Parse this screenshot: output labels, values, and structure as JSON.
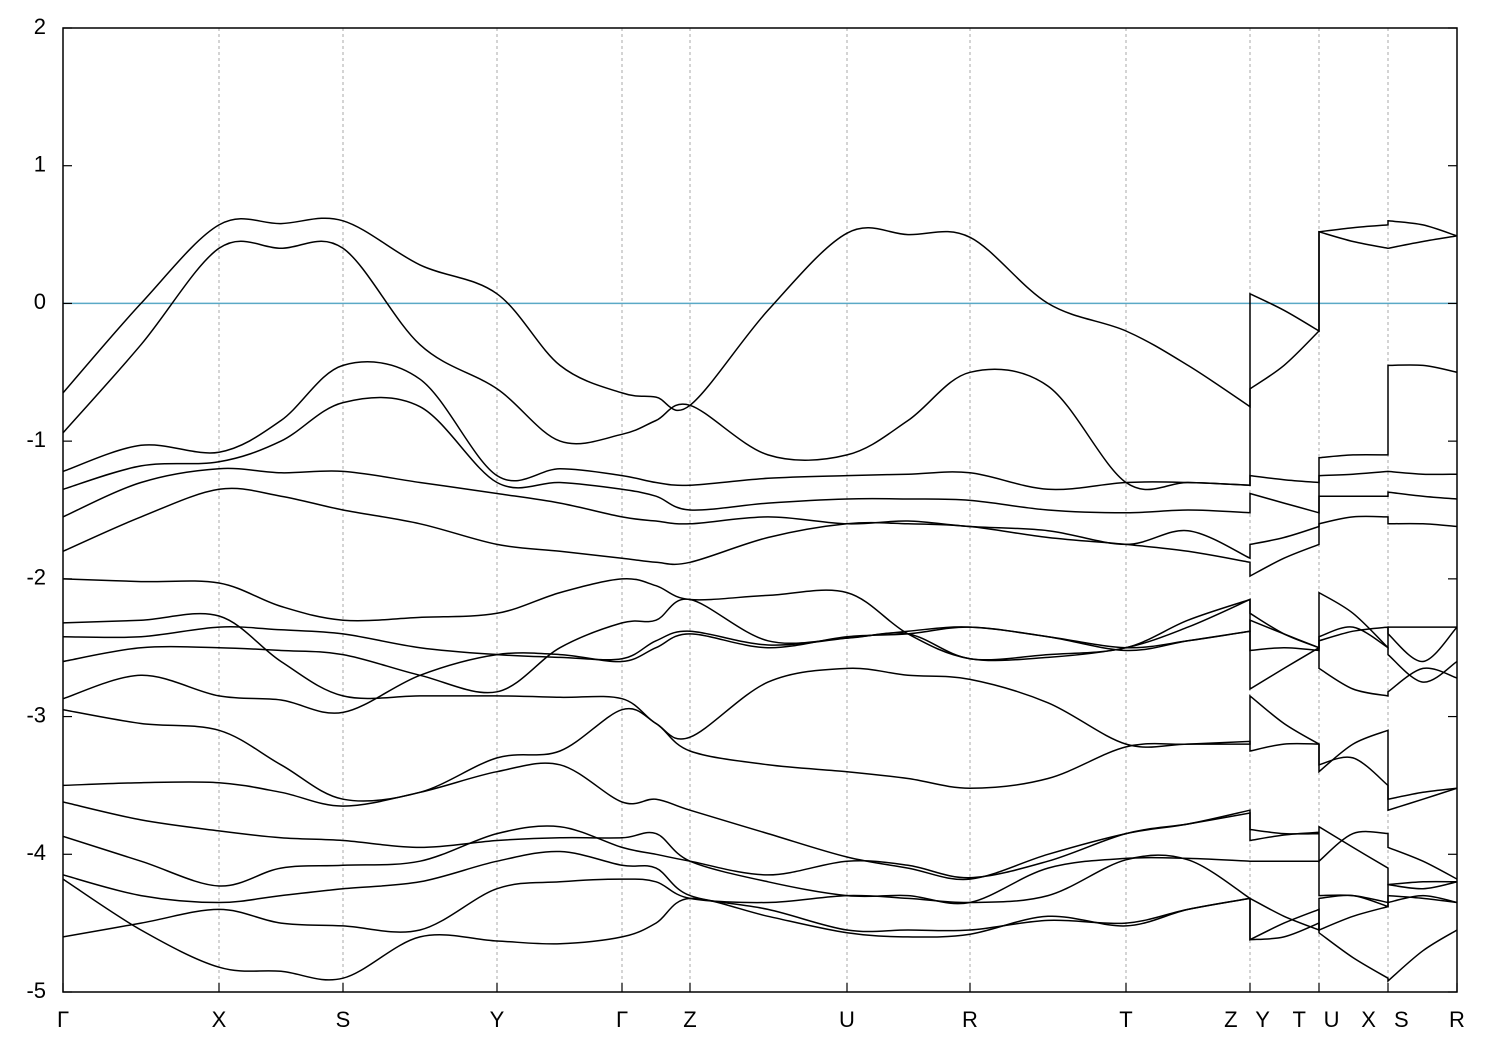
{
  "chart_data": {
    "type": "line",
    "xlim": [
      0,
      1394
    ],
    "ylim": [
      -5,
      2
    ],
    "yticks": [
      2,
      1,
      0,
      -1,
      -2,
      -3,
      -4,
      -5
    ],
    "xticks": [
      {
        "value": 0,
        "label": "Γ"
      },
      {
        "value": 156,
        "label": "X"
      },
      {
        "value": 280,
        "label": "S"
      },
      {
        "value": 434,
        "label": "Y"
      },
      {
        "value": 559,
        "label": "Γ"
      },
      {
        "value": 627,
        "label": "Z"
      },
      {
        "value": 784,
        "label": "U"
      },
      {
        "value": 907,
        "label": "R"
      },
      {
        "value": 1063,
        "label": "T"
      },
      {
        "value": 1187,
        "label": "Z Y"
      },
      {
        "value": 1256,
        "label": "T U"
      },
      {
        "value": 1325,
        "label": "X S"
      },
      {
        "value": 1394,
        "label": "R"
      }
    ],
    "grid": true,
    "fermi_level": 0,
    "fermi_color": "#5aa9c6",
    "x": [
      0,
      78,
      156,
      218,
      280,
      357,
      434,
      497,
      559,
      593,
      627,
      705,
      784,
      845,
      907,
      985,
      1063,
      1125,
      1187,
      1187,
      1221,
      1256,
      1256,
      1290,
      1325,
      1325,
      1360,
      1394
    ],
    "series": [
      {
        "color": "#000000",
        "values": [
          -0.65,
          0.0,
          0.57,
          0.58,
          0.6,
          0.28,
          0.07,
          -0.45,
          -0.65,
          -0.68,
          -0.74,
          -0.05,
          0.51,
          0.5,
          0.48,
          0.0,
          -0.2,
          -0.45,
          -0.75,
          0.07,
          -0.05,
          -0.2,
          0.52,
          0.55,
          0.57,
          0.6,
          0.57,
          0.49
        ]
      },
      {
        "color": "#000000",
        "values": [
          -0.94,
          -0.3,
          0.4,
          0.4,
          0.4,
          -0.3,
          -0.62,
          -1.0,
          -0.95,
          -0.85,
          -0.74,
          -1.1,
          -1.1,
          -0.85,
          -0.5,
          -0.6,
          -1.3,
          -1.3,
          -1.32,
          -0.62,
          -0.45,
          -0.2,
          0.52,
          0.45,
          0.4,
          0.4,
          0.45,
          0.49
        ]
      },
      {
        "color": "#000000",
        "values": [
          -1.22,
          -1.03,
          -1.08,
          -0.85,
          -0.45,
          -0.55,
          -1.25,
          -1.2,
          -1.25,
          -1.3,
          -1.32,
          -1.27,
          -1.25,
          -1.24,
          -1.23,
          -1.35,
          -1.3,
          -1.3,
          -1.32,
          -1.25,
          -1.28,
          -1.3,
          -1.12,
          -1.1,
          -1.1,
          -0.45,
          -0.45,
          -0.5
        ]
      },
      {
        "color": "#000000",
        "values": [
          -1.35,
          -1.18,
          -1.15,
          -1.0,
          -0.72,
          -0.75,
          -1.3,
          -1.3,
          -1.35,
          -1.4,
          -1.5,
          -1.45,
          -1.42,
          -1.42,
          -1.43,
          -1.5,
          -1.52,
          -1.5,
          -1.52,
          -1.38,
          -1.45,
          -1.52,
          -1.4,
          -1.4,
          -1.4,
          -1.37,
          -1.4,
          -1.42
        ]
      },
      {
        "color": "#000000",
        "values": [
          -1.55,
          -1.3,
          -1.2,
          -1.23,
          -1.22,
          -1.3,
          -1.38,
          -1.45,
          -1.55,
          -1.58,
          -1.6,
          -1.55,
          -1.6,
          -1.58,
          -1.62,
          -1.65,
          -1.75,
          -1.65,
          -1.85,
          -1.75,
          -1.7,
          -1.62,
          -1.6,
          -1.55,
          -1.55,
          -1.6,
          -1.6,
          -1.62
        ]
      },
      {
        "color": "#000000",
        "values": [
          -1.8,
          -1.55,
          -1.35,
          -1.4,
          -1.5,
          -1.6,
          -1.75,
          -1.8,
          -1.85,
          -1.88,
          -1.88,
          -1.7,
          -1.6,
          -1.6,
          -1.62,
          -1.7,
          -1.75,
          -1.8,
          -1.88,
          -1.98,
          -1.85,
          -1.75,
          -1.25,
          -1.24,
          -1.22,
          -1.22,
          -1.24,
          -1.24
        ]
      },
      {
        "color": "#000000",
        "values": [
          -2.0,
          -2.02,
          -2.03,
          -2.2,
          -2.3,
          -2.28,
          -2.25,
          -2.1,
          -2.0,
          -2.05,
          -2.15,
          -2.12,
          -2.1,
          -2.4,
          -2.58,
          -2.57,
          -2.5,
          -2.35,
          -2.15,
          -2.25,
          -2.4,
          -2.5,
          -2.1,
          -2.25,
          -2.5,
          -2.35,
          -2.35,
          -2.35
        ]
      },
      {
        "color": "#000000",
        "values": [
          -2.32,
          -2.3,
          -2.27,
          -2.6,
          -2.85,
          -2.85,
          -2.85,
          -2.86,
          -2.87,
          -3.05,
          -3.15,
          -2.75,
          -2.65,
          -2.7,
          -2.73,
          -2.9,
          -3.2,
          -3.2,
          -3.2,
          -2.85,
          -3.05,
          -3.2,
          -3.4,
          -3.2,
          -3.1,
          -3.68,
          -3.6,
          -3.52
        ]
      },
      {
        "color": "#000000",
        "values": [
          -2.42,
          -2.42,
          -2.35,
          -2.37,
          -2.4,
          -2.5,
          -2.55,
          -2.57,
          -2.58,
          -2.45,
          -2.38,
          -2.48,
          -2.43,
          -2.38,
          -2.35,
          -2.42,
          -2.52,
          -2.45,
          -2.38,
          -2.52,
          -2.5,
          -2.52,
          -2.45,
          -2.38,
          -2.35,
          -2.4,
          -2.6,
          -2.35
        ]
      },
      {
        "color": "#000000",
        "values": [
          -2.6,
          -2.5,
          -2.5,
          -2.52,
          -2.55,
          -2.7,
          -2.82,
          -2.5,
          -2.32,
          -2.3,
          -2.15,
          -2.45,
          -2.43,
          -2.4,
          -2.58,
          -2.55,
          -2.5,
          -2.3,
          -2.15,
          -2.8,
          -2.65,
          -2.5,
          -2.65,
          -2.8,
          -2.85,
          -2.82,
          -2.65,
          -2.72
        ]
      },
      {
        "color": "#000000",
        "values": [
          -2.87,
          -2.7,
          -2.85,
          -2.88,
          -2.97,
          -2.7,
          -2.55,
          -2.55,
          -2.6,
          -2.5,
          -2.4,
          -2.5,
          -2.42,
          -2.4,
          -2.35,
          -2.42,
          -2.5,
          -2.45,
          -2.38,
          -2.3,
          -2.4,
          -2.5,
          -2.42,
          -2.35,
          -2.5,
          -2.55,
          -2.75,
          -2.6
        ]
      },
      {
        "color": "#000000",
        "values": [
          -2.95,
          -3.05,
          -3.1,
          -3.35,
          -3.6,
          -3.55,
          -3.3,
          -3.25,
          -2.95,
          -3.05,
          -3.25,
          -3.35,
          -3.4,
          -3.45,
          -3.52,
          -3.45,
          -3.22,
          -3.2,
          -3.18,
          -3.25,
          -3.2,
          -3.2,
          -3.35,
          -3.3,
          -3.5,
          -3.6,
          -3.55,
          -3.52
        ]
      },
      {
        "color": "#000000",
        "values": [
          -3.5,
          -3.48,
          -3.48,
          -3.55,
          -3.65,
          -3.55,
          -3.4,
          -3.35,
          -3.62,
          -3.6,
          -3.68,
          -3.85,
          -4.02,
          -4.1,
          -4.18,
          -4.0,
          -3.85,
          -3.78,
          -3.68,
          -3.82,
          -3.85,
          -3.85,
          -4.05,
          -3.85,
          -3.85,
          -3.95,
          -4.05,
          -4.18
        ]
      },
      {
        "color": "#000000",
        "values": [
          -3.62,
          -3.75,
          -3.83,
          -3.88,
          -3.9,
          -3.95,
          -3.9,
          -3.88,
          -3.88,
          -3.85,
          -4.05,
          -4.2,
          -4.3,
          -4.3,
          -4.35,
          -4.1,
          -4.03,
          -4.03,
          -4.05,
          -4.05,
          -4.05,
          -4.05,
          -4.3,
          -4.3,
          -4.35,
          -4.3,
          -4.32,
          -4.35
        ]
      },
      {
        "color": "#000000",
        "values": [
          -3.87,
          -4.05,
          -4.23,
          -4.1,
          -4.08,
          -4.05,
          -3.85,
          -3.8,
          -3.95,
          -4.0,
          -4.05,
          -4.15,
          -4.05,
          -4.08,
          -4.17,
          -4.05,
          -3.85,
          -3.78,
          -3.7,
          -3.9,
          -3.86,
          -3.84,
          -3.8,
          -3.95,
          -4.1,
          -4.22,
          -4.25,
          -4.2
        ]
      },
      {
        "color": "#000000",
        "values": [
          -4.15,
          -4.3,
          -4.35,
          -4.3,
          -4.25,
          -4.2,
          -4.05,
          -3.98,
          -4.08,
          -4.1,
          -4.3,
          -4.4,
          -4.55,
          -4.55,
          -4.55,
          -4.48,
          -4.5,
          -4.4,
          -4.32,
          -4.62,
          -4.5,
          -4.4,
          -4.55,
          -4.45,
          -4.38,
          -4.22,
          -4.2,
          -4.2
        ]
      },
      {
        "color": "#000000",
        "values": [
          -4.6,
          -4.5,
          -4.4,
          -4.5,
          -4.52,
          -4.55,
          -4.25,
          -4.2,
          -4.18,
          -4.2,
          -4.32,
          -4.35,
          -4.3,
          -4.32,
          -4.35,
          -4.3,
          -4.04,
          -4.04,
          -4.32,
          -4.32,
          -4.45,
          -4.55,
          -4.32,
          -4.3,
          -4.38,
          -4.35,
          -4.3,
          -4.35
        ]
      },
      {
        "color": "#000000",
        "values": [
          -4.18,
          -4.55,
          -4.82,
          -4.85,
          -4.9,
          -4.6,
          -4.63,
          -4.65,
          -4.6,
          -4.5,
          -4.32,
          -4.45,
          -4.57,
          -4.6,
          -4.58,
          -4.45,
          -4.52,
          -4.4,
          -4.32,
          -4.62,
          -4.6,
          -4.5,
          -4.57,
          -4.75,
          -4.9,
          -4.92,
          -4.7,
          -4.55
        ]
      }
    ]
  }
}
